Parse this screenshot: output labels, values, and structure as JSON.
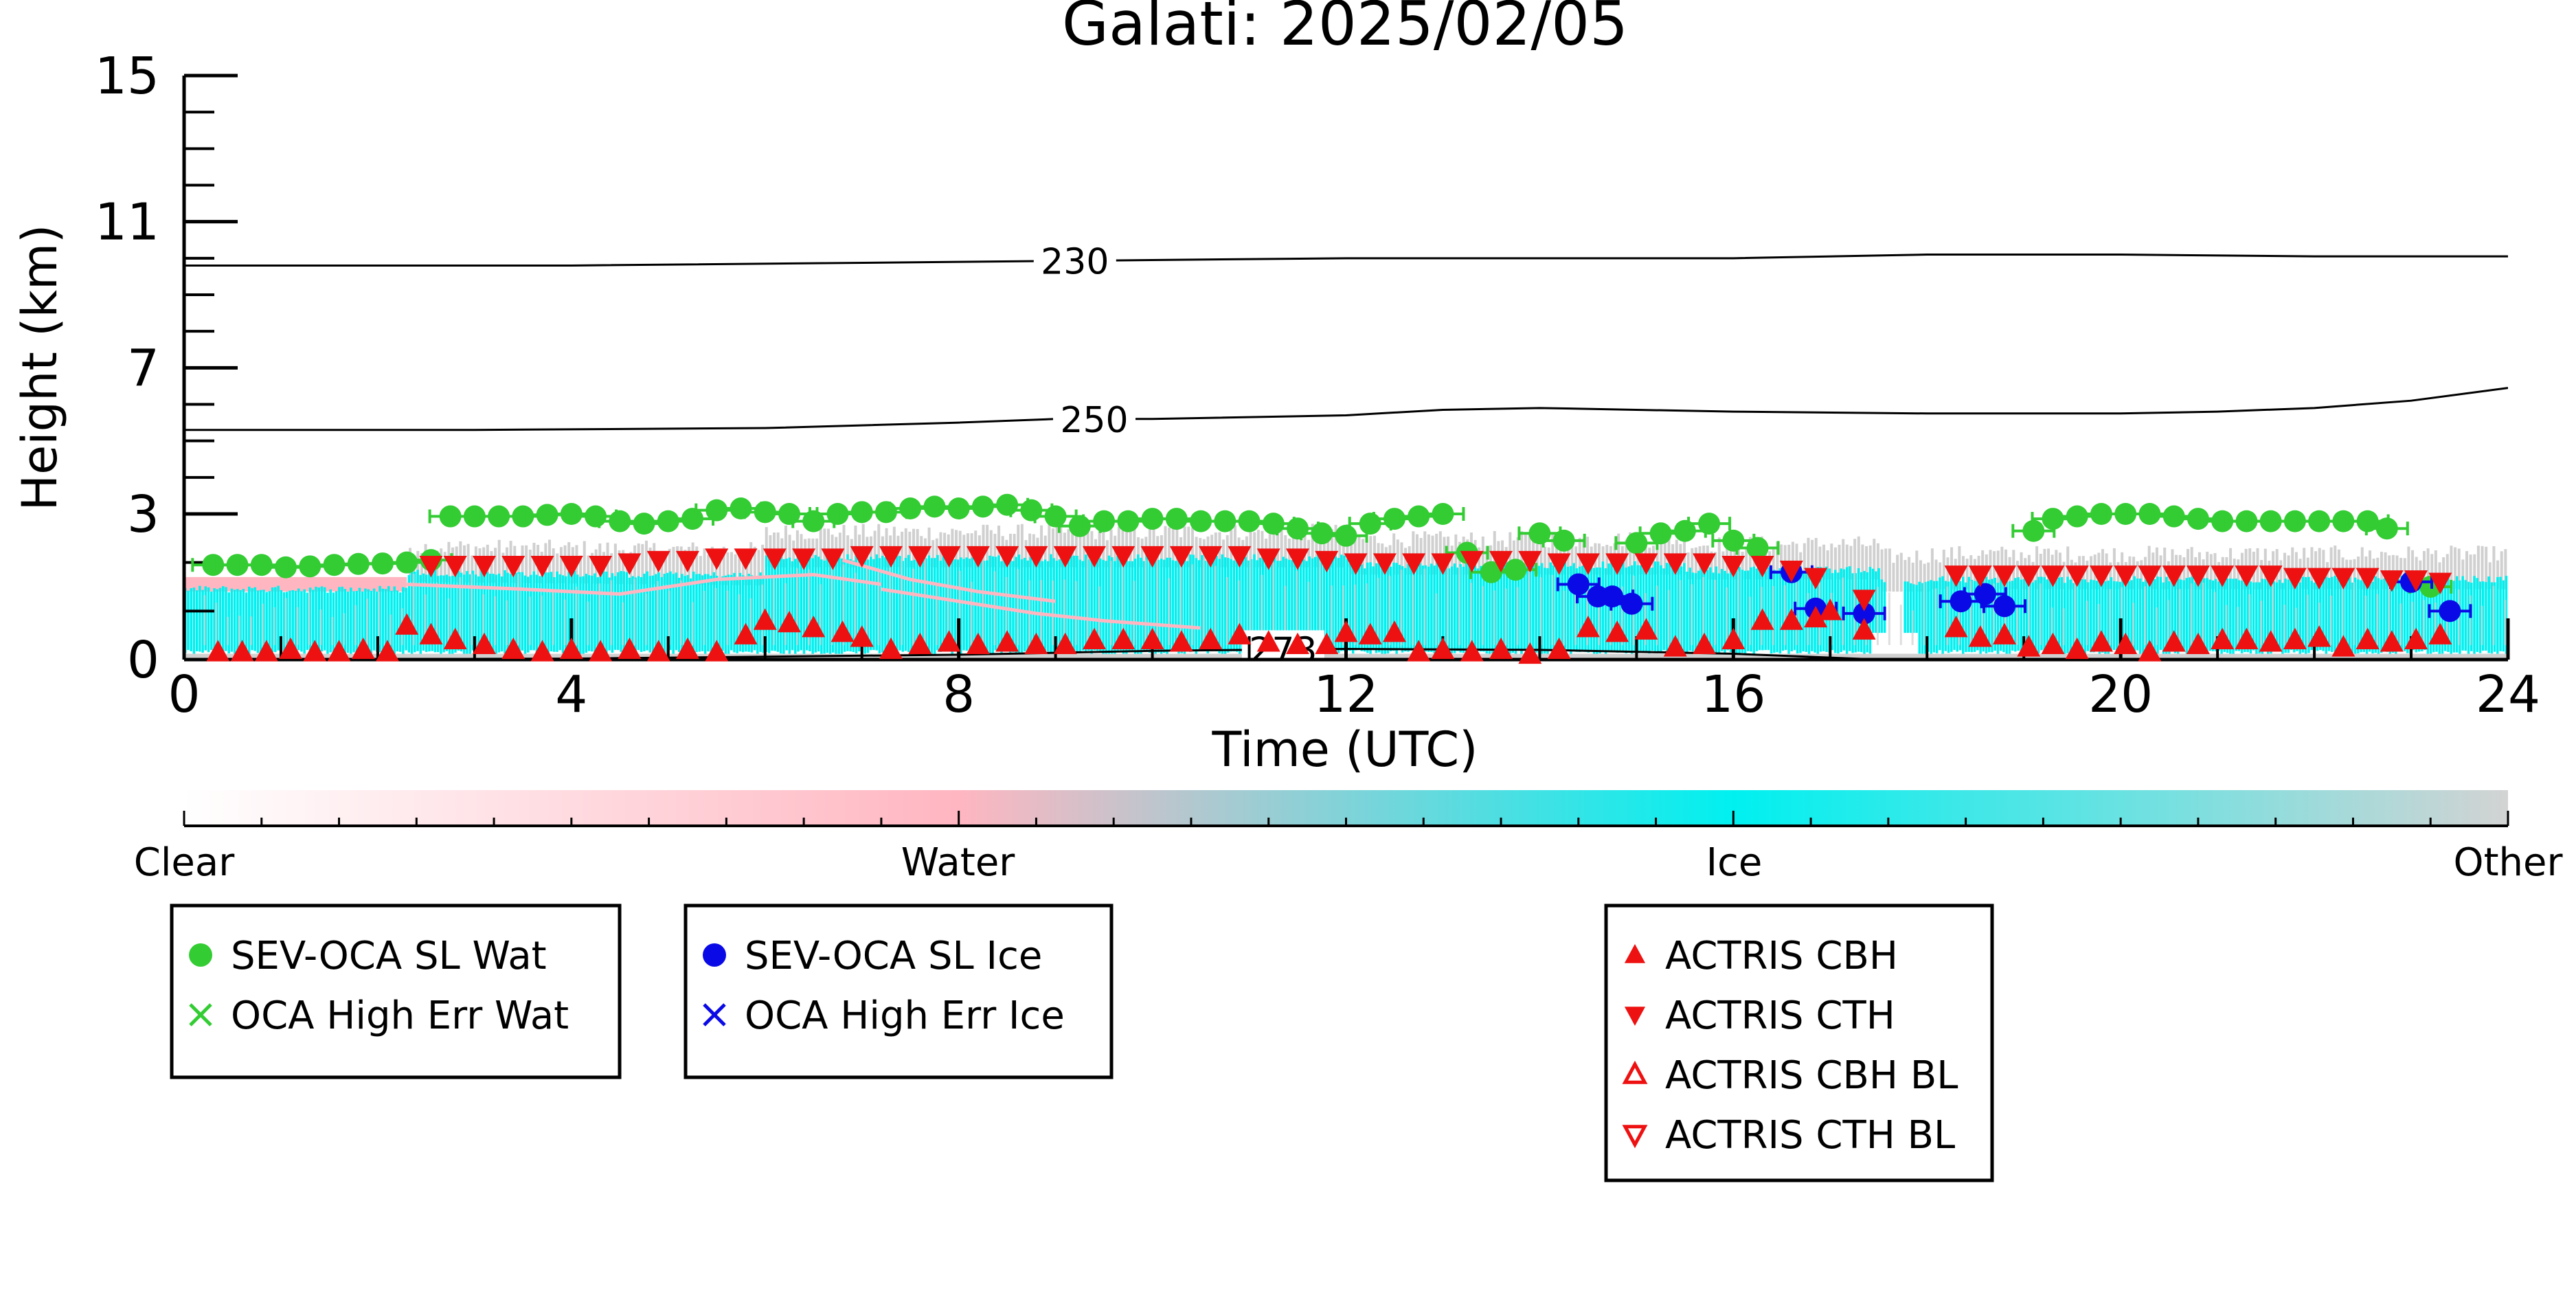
{
  "chart_data": {
    "type": "scatter",
    "title": "Galati: 2025/02/05",
    "xlabel": "Time (UTC)",
    "ylabel": "Height (km)",
    "xlim": [
      0,
      24
    ],
    "ylim_display": [
      0,
      15
    ],
    "y_scale": "piecewise: 0-3 km expanded, 3-15 km compressed",
    "x_ticks": [
      "0",
      "4",
      "8",
      "12",
      "16",
      "20",
      "24"
    ],
    "x_tick_values": [
      0,
      4,
      8,
      12,
      16,
      20,
      24
    ],
    "y_ticks": [
      "0",
      "3",
      "7",
      "11",
      "15"
    ],
    "y_tick_values": [
      0,
      3,
      7,
      11,
      15
    ],
    "grid": false,
    "colors": {
      "water_dot": "#33cc33",
      "ice_dot": "#0a0ae6",
      "actris": "#ee1111",
      "cyan_ice": "#00f0f0",
      "pink_water": "#ffb6c1",
      "grey_other": "#d0d0d0"
    },
    "colorbar": {
      "labels": [
        "Clear",
        "Water",
        "Ice",
        "Other"
      ],
      "positions": [
        0,
        0.333,
        0.667,
        1.0
      ],
      "gradient": [
        "#ffffff",
        "#ffb6c1",
        "#00f0f0",
        "#d3d3d3"
      ]
    },
    "contours": [
      {
        "label": "230",
        "label_x": 9.2,
        "x": [
          0,
          4,
          8,
          12,
          16,
          18,
          20,
          22,
          24
        ],
        "y": [
          9.8,
          9.8,
          9.9,
          10.0,
          10.0,
          10.1,
          10.1,
          10.05,
          10.05
        ]
      },
      {
        "label": "250",
        "label_x": 9.4,
        "x": [
          0,
          3,
          6,
          8,
          9,
          10,
          12,
          13,
          14,
          16,
          18,
          20,
          21,
          22,
          23,
          24
        ],
        "y": [
          5.3,
          5.3,
          5.35,
          5.5,
          5.6,
          5.6,
          5.7,
          5.85,
          5.9,
          5.8,
          5.75,
          5.75,
          5.8,
          5.9,
          6.1,
          6.45
        ]
      },
      {
        "label": "273",
        "label_x": 11.35,
        "x": [
          0,
          4,
          8,
          10,
          12,
          14,
          16,
          17,
          17.5
        ],
        "y": [
          0.0,
          0.02,
          0.1,
          0.18,
          0.22,
          0.2,
          0.12,
          0.04,
          0.0
        ]
      }
    ],
    "series": [
      {
        "name": "SEV-OCA SL Wat",
        "marker": "circle",
        "color": "#33cc33",
        "x": [
          0.3,
          0.55,
          0.8,
          1.05,
          1.3,
          1.55,
          1.8,
          2.05,
          2.3,
          2.55,
          2.75,
          3.0,
          3.25,
          3.5,
          3.75,
          4.0,
          4.25,
          4.5,
          4.75,
          5.0,
          5.25,
          5.5,
          5.75,
          6.0,
          6.25,
          6.5,
          6.75,
          7.0,
          7.25,
          7.5,
          7.75,
          8.0,
          8.25,
          8.5,
          8.75,
          9.0,
          9.25,
          9.5,
          9.75,
          10.0,
          10.25,
          10.5,
          10.75,
          11.0,
          11.25,
          11.5,
          11.75,
          12.0,
          12.25,
          12.5,
          12.75,
          13.0,
          13.25,
          13.5,
          13.75,
          14.0,
          14.25,
          15.0,
          15.25,
          15.5,
          15.75,
          16.0,
          16.25,
          19.1,
          19.3,
          19.55,
          19.8,
          20.05,
          20.3,
          20.55,
          20.8,
          21.05,
          21.3,
          21.55,
          21.8,
          22.05,
          22.3,
          22.55,
          22.75,
          23.2
        ],
        "y": [
          1.95,
          1.95,
          1.95,
          1.9,
          1.92,
          1.95,
          1.97,
          1.98,
          2.0,
          2.05,
          2.95,
          2.95,
          2.95,
          2.95,
          2.98,
          3.0,
          2.95,
          2.85,
          2.8,
          2.85,
          2.9,
          3.1,
          3.15,
          3.05,
          3.0,
          2.85,
          3.0,
          3.05,
          3.05,
          3.15,
          3.2,
          3.15,
          3.2,
          3.25,
          3.1,
          2.95,
          2.75,
          2.85,
          2.85,
          2.9,
          2.9,
          2.85,
          2.85,
          2.85,
          2.8,
          2.7,
          2.6,
          2.55,
          2.8,
          2.9,
          2.95,
          3.0,
          2.2,
          1.8,
          1.85,
          2.6,
          2.45,
          2.4,
          2.6,
          2.65,
          2.8,
          2.45,
          2.3,
          2.65,
          2.9,
          2.95,
          3.0,
          3.0,
          3.0,
          2.95,
          2.9,
          2.85,
          2.85,
          2.85,
          2.85,
          2.85,
          2.85,
          2.85,
          2.7,
          1.5
        ]
      },
      {
        "name": "OCA High Err Wat",
        "marker": "x",
        "color": "#33cc33",
        "x": [],
        "y": []
      },
      {
        "name": "SEV-OCA SL Ice",
        "marker": "circle",
        "color": "#0a0ae6",
        "x": [
          14.4,
          14.6,
          14.75,
          14.95,
          16.6,
          16.85,
          17.35,
          18.35,
          18.6,
          18.8,
          23.0,
          23.4
        ],
        "y": [
          1.55,
          1.3,
          1.3,
          1.15,
          1.8,
          1.05,
          0.95,
          1.2,
          1.35,
          1.1,
          1.6,
          1.0
        ]
      },
      {
        "name": "OCA High Err Ice",
        "marker": "x",
        "color": "#0a0ae6",
        "x": [],
        "y": []
      },
      {
        "name": "ACTRIS CBH",
        "marker": "triangle-up",
        "color": "#ee1111",
        "x": [
          0.35,
          0.6,
          0.85,
          1.1,
          1.35,
          1.6,
          1.85,
          2.1,
          2.3,
          2.55,
          2.8,
          3.1,
          3.4,
          3.7,
          4.0,
          4.3,
          4.6,
          4.9,
          5.2,
          5.5,
          5.8,
          6.0,
          6.25,
          6.5,
          6.8,
          7.0,
          7.3,
          7.6,
          7.9,
          8.2,
          8.5,
          8.8,
          9.1,
          9.4,
          9.7,
          10.0,
          10.3,
          10.6,
          10.9,
          11.2,
          11.5,
          11.8,
          12.0,
          12.25,
          12.5,
          12.75,
          13.0,
          13.3,
          13.6,
          13.9,
          14.2,
          14.5,
          14.8,
          15.1,
          15.4,
          15.7,
          16.0,
          16.3,
          16.6,
          16.85,
          17.0,
          17.35,
          18.3,
          18.55,
          18.8,
          19.05,
          19.3,
          19.55,
          19.8,
          20.05,
          20.3,
          20.55,
          20.8,
          21.05,
          21.3,
          21.55,
          21.8,
          22.05,
          22.3,
          22.55,
          22.8,
          23.05,
          23.3
        ],
        "y": [
          0.15,
          0.15,
          0.15,
          0.2,
          0.15,
          0.15,
          0.2,
          0.15,
          0.7,
          0.5,
          0.4,
          0.3,
          0.2,
          0.15,
          0.2,
          0.15,
          0.2,
          0.15,
          0.2,
          0.15,
          0.5,
          0.8,
          0.75,
          0.65,
          0.55,
          0.45,
          0.2,
          0.3,
          0.35,
          0.3,
          0.35,
          0.3,
          0.3,
          0.4,
          0.4,
          0.4,
          0.35,
          0.4,
          0.5,
          0.35,
          0.3,
          0.3,
          0.55,
          0.5,
          0.55,
          0.15,
          0.2,
          0.15,
          0.2,
          0.1,
          0.2,
          0.65,
          0.55,
          0.6,
          0.25,
          0.3,
          0.4,
          0.8,
          0.8,
          0.85,
          1.0,
          0.6,
          0.65,
          0.45,
          0.5,
          0.25,
          0.3,
          0.2,
          0.35,
          0.3,
          0.15,
          0.35,
          0.3,
          0.4,
          0.4,
          0.35,
          0.4,
          0.45,
          0.25,
          0.4,
          0.35,
          0.4,
          0.5
        ]
      },
      {
        "name": "ACTRIS CTH",
        "marker": "triangle-down",
        "color": "#ee1111",
        "x": [
          2.55,
          2.8,
          3.1,
          3.4,
          3.7,
          4.0,
          4.3,
          4.6,
          4.9,
          5.2,
          5.5,
          5.8,
          6.1,
          6.4,
          6.7,
          7.0,
          7.3,
          7.6,
          7.9,
          8.2,
          8.5,
          8.8,
          9.1,
          9.4,
          9.7,
          10.0,
          10.3,
          10.6,
          10.9,
          11.2,
          11.5,
          11.8,
          12.1,
          12.4,
          12.7,
          13.0,
          13.3,
          13.6,
          13.9,
          14.2,
          14.5,
          14.8,
          15.1,
          15.4,
          15.7,
          16.0,
          16.3,
          16.6,
          16.85,
          17.35,
          18.3,
          18.55,
          18.8,
          19.05,
          19.3,
          19.55,
          19.8,
          20.05,
          20.3,
          20.55,
          20.8,
          21.05,
          21.3,
          21.55,
          21.8,
          22.05,
          22.3,
          22.55,
          22.8,
          23.05,
          23.3
        ],
        "y": [
          1.95,
          1.95,
          1.95,
          1.95,
          1.95,
          1.95,
          1.95,
          2.0,
          2.05,
          2.05,
          2.1,
          2.1,
          2.1,
          2.1,
          2.1,
          2.15,
          2.15,
          2.15,
          2.15,
          2.15,
          2.15,
          2.15,
          2.15,
          2.15,
          2.15,
          2.15,
          2.15,
          2.15,
          2.15,
          2.1,
          2.1,
          2.05,
          2.0,
          2.0,
          2.0,
          2.0,
          2.05,
          2.05,
          2.05,
          2.0,
          2.0,
          2.0,
          2.0,
          2.0,
          2.0,
          1.95,
          1.95,
          1.85,
          1.7,
          1.25,
          1.75,
          1.75,
          1.75,
          1.75,
          1.75,
          1.75,
          1.75,
          1.75,
          1.75,
          1.75,
          1.75,
          1.75,
          1.75,
          1.75,
          1.7,
          1.7,
          1.7,
          1.7,
          1.65,
          1.65,
          1.6
        ]
      },
      {
        "name": "ACTRIS CBH BL",
        "marker": "triangle-up-open",
        "color": "#ee1111",
        "x": [],
        "y": []
      },
      {
        "name": "ACTRIS CTH BL",
        "marker": "triangle-down-open",
        "color": "#ee1111",
        "x": [],
        "y": []
      }
    ],
    "legends": [
      {
        "entries": [
          "SEV-OCA SL Wat",
          "OCA High Err Wat"
        ]
      },
      {
        "entries": [
          "SEV-OCA SL Ice",
          "OCA High Err Ice"
        ]
      },
      {
        "entries": [
          "ACTRIS CBH",
          "ACTRIS CTH",
          "ACTRIS CBH BL",
          "ACTRIS CTH BL"
        ]
      }
    ]
  }
}
